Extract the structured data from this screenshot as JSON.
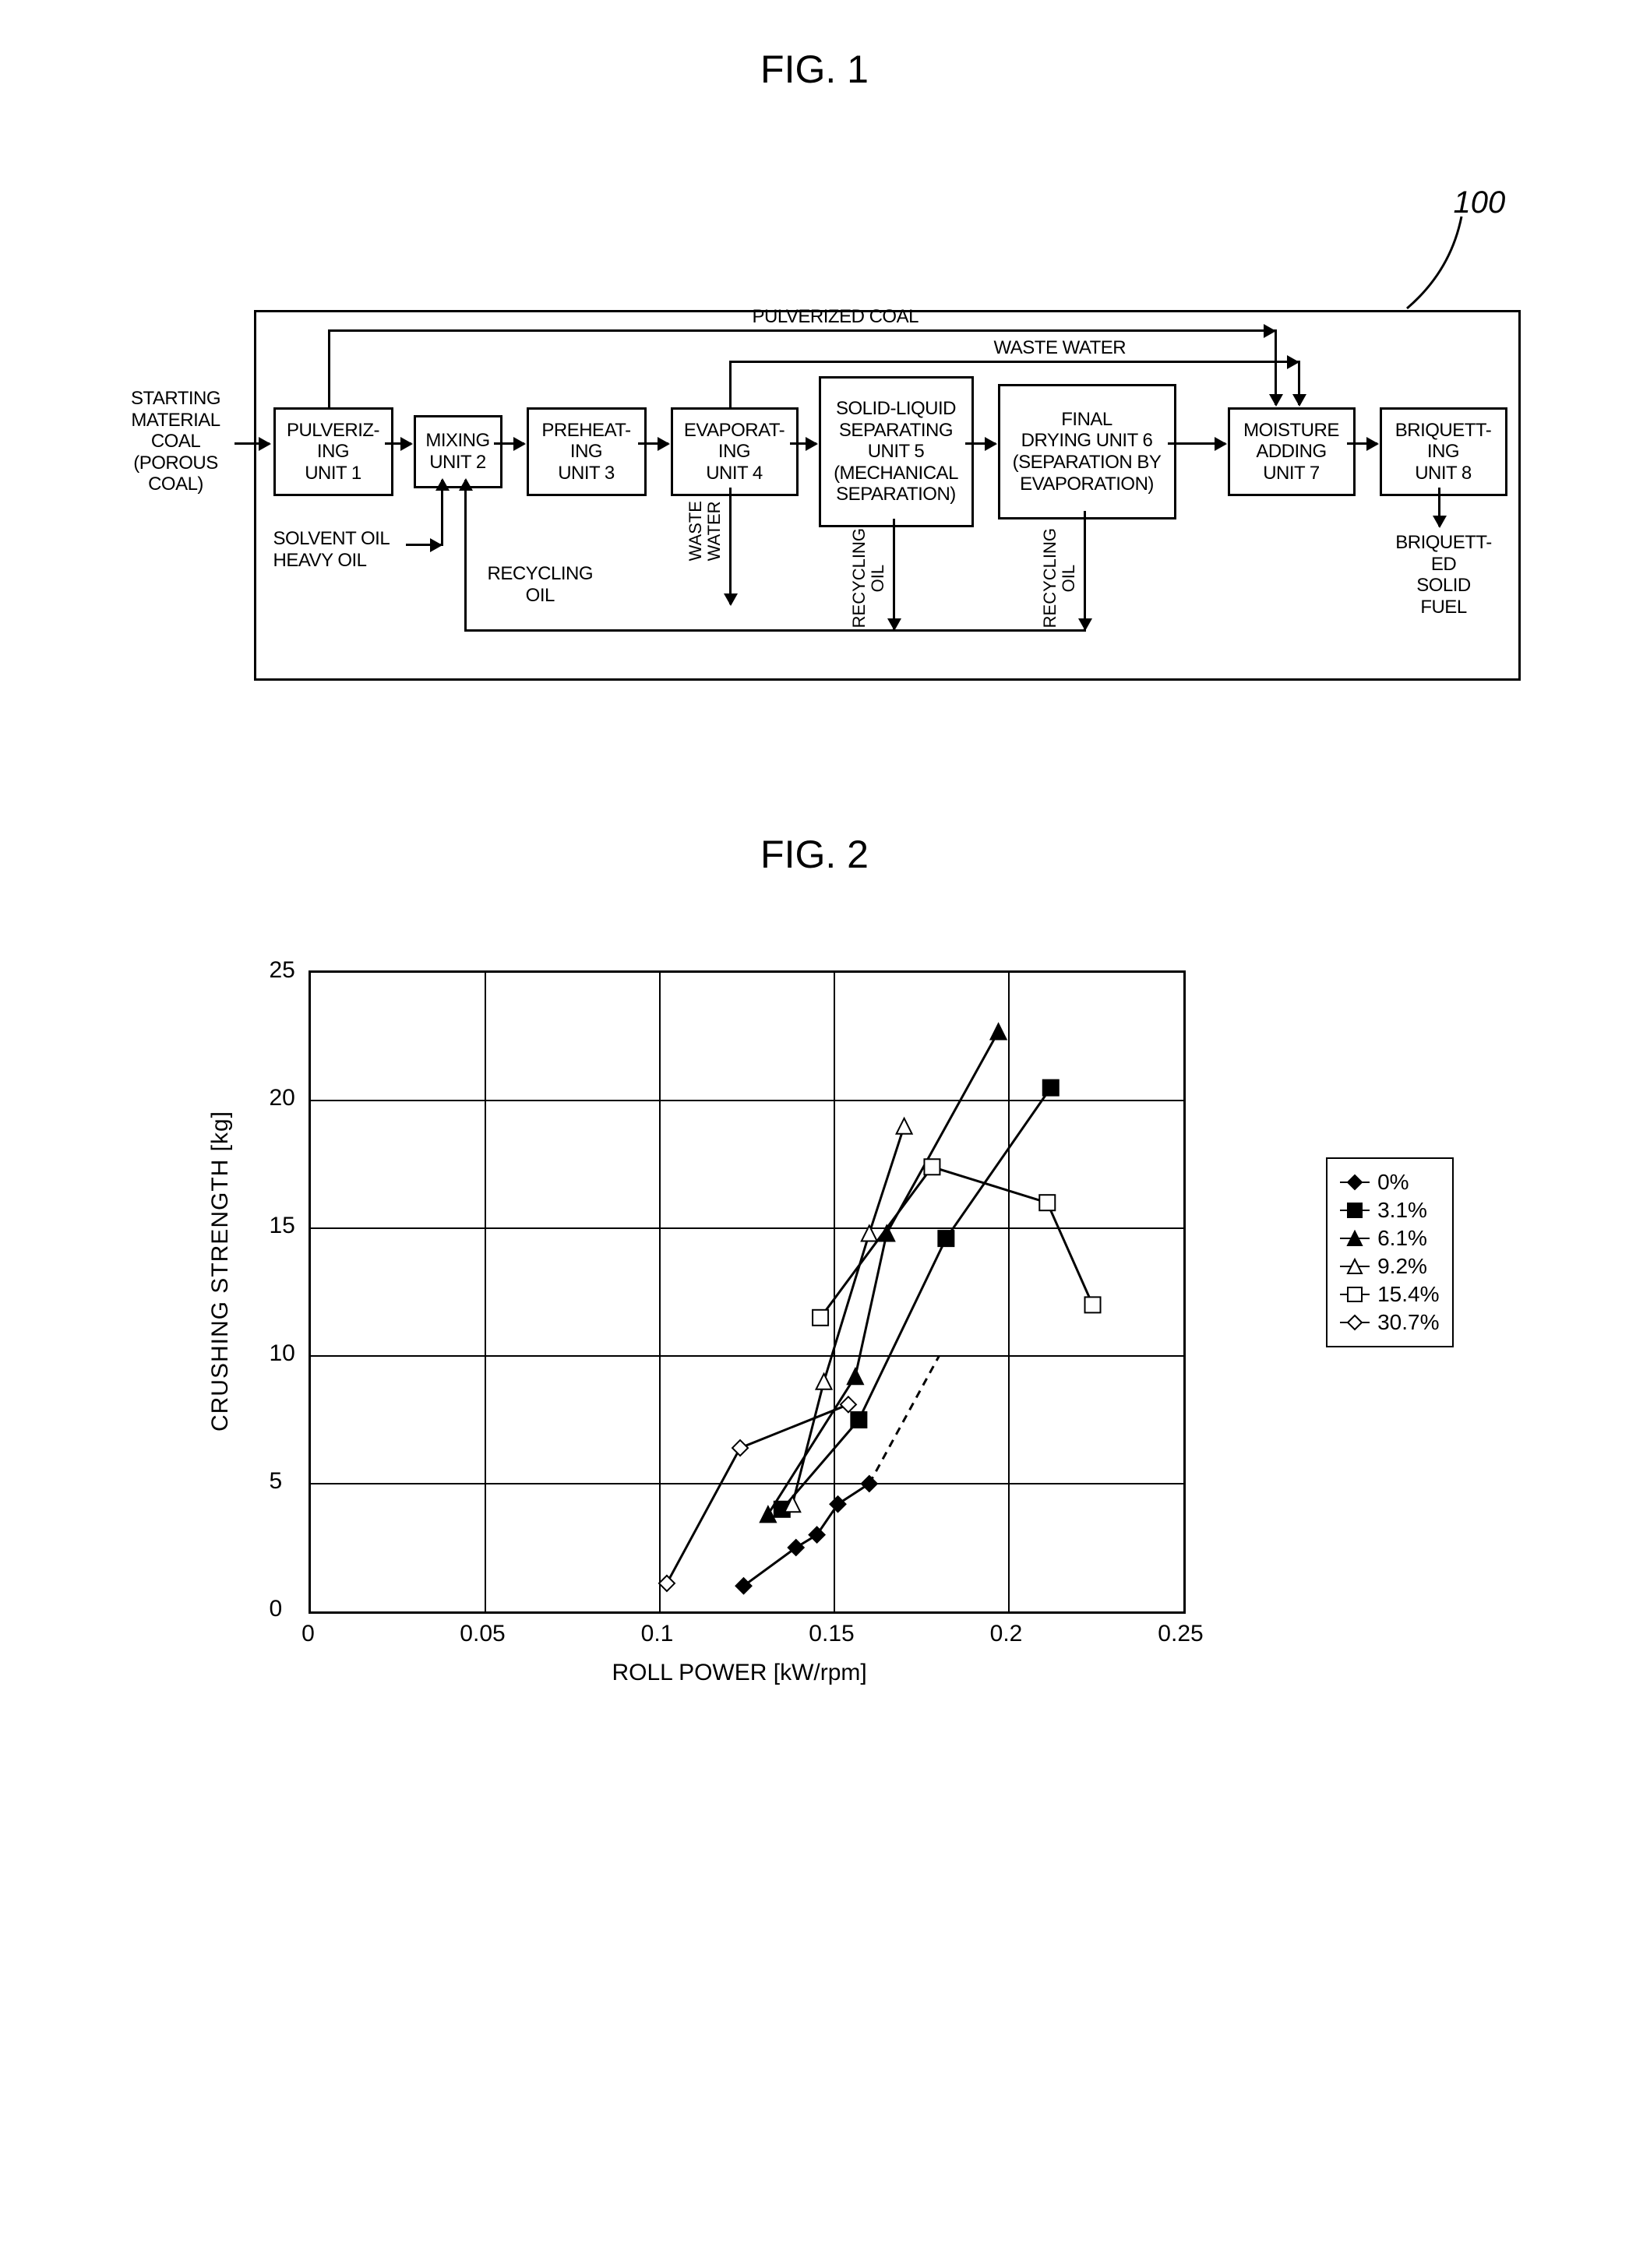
{
  "fig1": {
    "title": "FIG. 1",
    "ref_num": "100",
    "input_label": "STARTING\nMATERIAL\nCOAL\n(POROUS\nCOAL)",
    "boxes": {
      "pulverizing": "PULVERIZ-\nING\nUNIT 1",
      "mixing": "MIXING\nUNIT 2",
      "preheating": "PREHEAT-\nING\nUNIT 3",
      "evaporating": "EVAPORAT-\nING\nUNIT 4",
      "separating": "SOLID-LIQUID\nSEPARATING\nUNIT 5\n(MECHANICAL\nSEPARATION)",
      "drying": "FINAL\nDRYING UNIT 6\n(SEPARATION BY\nEVAPORATION)",
      "moisture": "MOISTURE\nADDING\nUNIT 7",
      "briquetting": "BRIQUETT-\nING\nUNIT 8"
    },
    "labels": {
      "pulverized_coal": "PULVERIZED COAL",
      "waste_water_top": "WASTE WATER",
      "solvent_heavy": "SOLVENT OIL\nHEAVY OIL",
      "recycling_oil_center": "RECYCLING\nOIL",
      "waste_water_v": "WASTE\nWATER",
      "recycling_oil_v1": "RECYCLING\nOIL",
      "recycling_oil_v2": "RECYCLING\nOIL",
      "output": "BRIQUETT-\nED\nSOLID\nFUEL"
    }
  },
  "fig2": {
    "title": "FIG. 2",
    "ylabel": "CRUSHING STRENGTH [kg]",
    "xlabel": "ROLL POWER [kW/rpm]",
    "xlim": [
      0,
      0.25
    ],
    "ylim": [
      0,
      25
    ],
    "xticks": [
      0,
      0.05,
      0.1,
      0.15,
      0.2,
      0.25
    ],
    "yticks": [
      0,
      5,
      10,
      15,
      20,
      25
    ],
    "series": [
      {
        "name": "0%",
        "marker": "diamond-filled",
        "dashed": true,
        "points": [
          [
            0.124,
            1.0
          ],
          [
            0.139,
            2.5
          ],
          [
            0.145,
            3.0
          ],
          [
            0.151,
            4.2
          ],
          [
            0.16,
            5.0
          ],
          [
            0.18,
            10.0
          ]
        ]
      },
      {
        "name": "3.1%",
        "marker": "square-filled",
        "dashed": false,
        "points": [
          [
            0.135,
            4.0
          ],
          [
            0.157,
            7.5
          ],
          [
            0.182,
            14.6
          ],
          [
            0.212,
            20.5
          ]
        ]
      },
      {
        "name": "6.1%",
        "marker": "triangle-filled",
        "dashed": false,
        "points": [
          [
            0.131,
            3.8
          ],
          [
            0.156,
            9.2
          ],
          [
            0.165,
            14.8
          ],
          [
            0.197,
            22.7
          ]
        ]
      },
      {
        "name": "9.2%",
        "marker": "triangle-open",
        "dashed": false,
        "points": [
          [
            0.138,
            4.2
          ],
          [
            0.147,
            9.0
          ],
          [
            0.16,
            14.8
          ],
          [
            0.17,
            19.0
          ]
        ]
      },
      {
        "name": "15.4%",
        "marker": "square-open",
        "dashed": false,
        "points": [
          [
            0.146,
            11.5
          ],
          [
            0.178,
            17.4
          ],
          [
            0.211,
            16.0
          ],
          [
            0.224,
            12.0
          ]
        ]
      },
      {
        "name": "30.7%",
        "marker": "diamond-open",
        "dashed": false,
        "points": [
          [
            0.102,
            1.1
          ],
          [
            0.123,
            6.4
          ],
          [
            0.154,
            8.1
          ]
        ]
      }
    ]
  }
}
